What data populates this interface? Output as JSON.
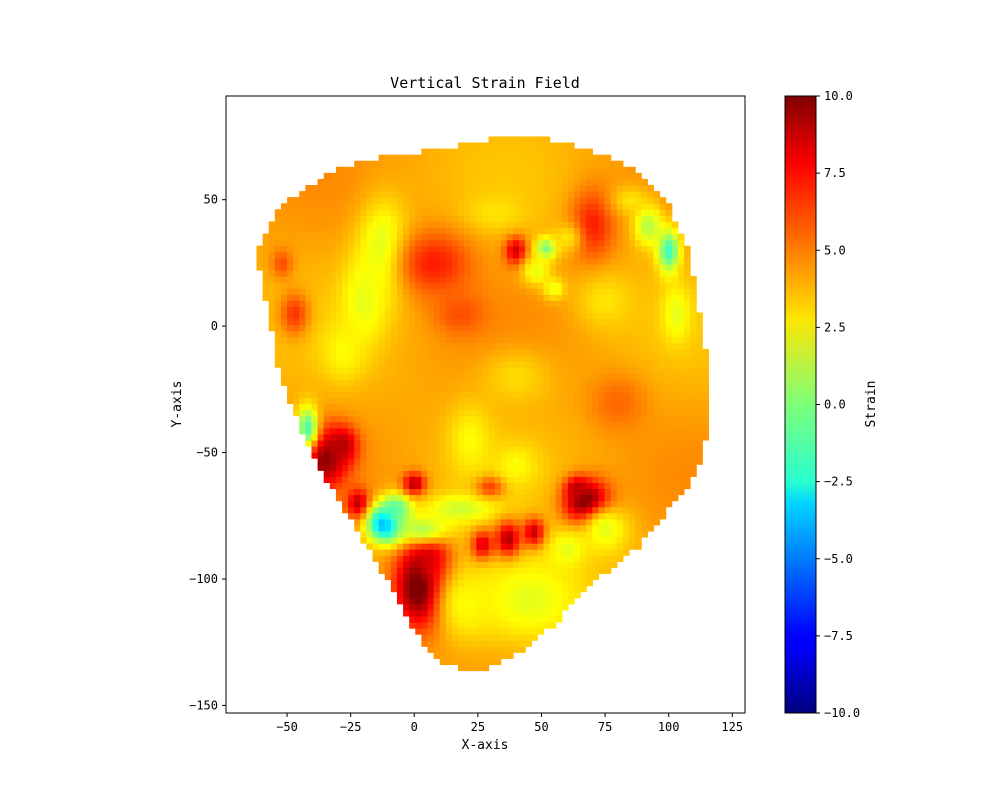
{
  "chart_data": {
    "type": "heatmap",
    "title": "Vertical Strain Field",
    "xlabel": "X-axis",
    "ylabel": "Y-axis",
    "xlim": [
      -74,
      130
    ],
    "ylim": [
      -153,
      91
    ],
    "x_ticks": [
      -50,
      -25,
      0,
      25,
      50,
      75,
      100,
      125
    ],
    "y_ticks": [
      50,
      0,
      -50,
      -100,
      -150
    ],
    "colorbar": {
      "label": "Strain",
      "colormap": "jet",
      "range": [
        -10,
        10
      ],
      "ticks": [
        10,
        7.5,
        5,
        2.5,
        0,
        -2.5,
        -5,
        -7.5,
        -10
      ],
      "tick_labels": [
        "10.0",
        "7.5",
        "5.0",
        "2.5",
        "0.0",
        "−2.5",
        "−5.0",
        "−7.5",
        "−10.0"
      ]
    },
    "cell_size": 2.4,
    "background_value": 4.2,
    "region_outline": [
      [
        -62,
        28
      ],
      [
        -58,
        38
      ],
      [
        -52,
        48
      ],
      [
        -42,
        55
      ],
      [
        -30,
        62
      ],
      [
        -18,
        66
      ],
      [
        -5,
        68
      ],
      [
        12,
        70
      ],
      [
        30,
        74
      ],
      [
        52,
        74
      ],
      [
        68,
        70
      ],
      [
        85,
        63
      ],
      [
        100,
        48
      ],
      [
        108,
        30
      ],
      [
        112,
        5
      ],
      [
        116,
        -20
      ],
      [
        116,
        -40
      ],
      [
        112,
        -55
      ],
      [
        106,
        -65
      ],
      [
        98,
        -75
      ],
      [
        88,
        -87
      ],
      [
        78,
        -95
      ],
      [
        66,
        -105
      ],
      [
        55,
        -118
      ],
      [
        40,
        -130
      ],
      [
        25,
        -137
      ],
      [
        10,
        -133
      ],
      [
        -2,
        -118
      ],
      [
        -12,
        -98
      ],
      [
        -22,
        -82
      ],
      [
        -30,
        -68
      ],
      [
        -38,
        -55
      ],
      [
        -44,
        -42
      ],
      [
        -50,
        -28
      ],
      [
        -55,
        -10
      ],
      [
        -57,
        5
      ],
      [
        -60,
        18
      ]
    ],
    "features": [
      {
        "x": -35,
        "y": -52,
        "sx": 6,
        "sy": 8,
        "value": 10
      },
      {
        "x": -28,
        "y": -47,
        "sx": 4,
        "sy": 5,
        "value": 9
      },
      {
        "x": -22,
        "y": -70,
        "sx": 3,
        "sy": 4,
        "value": 9
      },
      {
        "x": 3,
        "y": -103,
        "sx": 7,
        "sy": 11,
        "value": 12
      },
      {
        "x": 6,
        "y": -92,
        "sx": 5,
        "sy": 6,
        "value": 9
      },
      {
        "x": -11,
        "y": -78,
        "sx": 5,
        "sy": 5,
        "value": -5.5
      },
      {
        "x": -7,
        "y": -72,
        "sx": 4,
        "sy": 4,
        "value": -1
      },
      {
        "x": 3,
        "y": -80,
        "sx": 8,
        "sy": 4,
        "value": 1
      },
      {
        "x": 18,
        "y": -72,
        "sx": 10,
        "sy": 4,
        "value": 1.5
      },
      {
        "x": 0,
        "y": -62,
        "sx": 3,
        "sy": 3,
        "value": 9
      },
      {
        "x": 27,
        "y": -87,
        "sx": 3,
        "sy": 4,
        "value": 10
      },
      {
        "x": 37,
        "y": -85,
        "sx": 3.5,
        "sy": 5,
        "value": 11
      },
      {
        "x": 47,
        "y": -82,
        "sx": 3,
        "sy": 4,
        "value": 10
      },
      {
        "x": 68,
        "y": -70,
        "sx": 6,
        "sy": 6,
        "value": 12
      },
      {
        "x": 64,
        "y": -64,
        "sx": 3,
        "sy": 3,
        "value": 9
      },
      {
        "x": 30,
        "y": -63,
        "sx": 4,
        "sy": 3,
        "value": 7
      },
      {
        "x": 45,
        "y": -108,
        "sx": 18,
        "sy": 14,
        "value": 2
      },
      {
        "x": 20,
        "y": -110,
        "sx": 8,
        "sy": 10,
        "value": 2.5
      },
      {
        "x": 75,
        "y": -80,
        "sx": 7,
        "sy": 7,
        "value": 2
      },
      {
        "x": 60,
        "y": -88,
        "sx": 5,
        "sy": 5,
        "value": 2
      },
      {
        "x": 40,
        "y": -55,
        "sx": 6,
        "sy": 6,
        "value": 2.5
      },
      {
        "x": 22,
        "y": -45,
        "sx": 6,
        "sy": 10,
        "value": 2.5
      },
      {
        "x": -42,
        "y": -40,
        "sx": 3,
        "sy": 6,
        "value": -1
      },
      {
        "x": -47,
        "y": 5,
        "sx": 4,
        "sy": 6,
        "value": 6.5
      },
      {
        "x": -52,
        "y": 25,
        "sx": 3,
        "sy": 4,
        "value": 6
      },
      {
        "x": -12,
        "y": 30,
        "sx": 7,
        "sy": 14,
        "value": 1.5
      },
      {
        "x": -20,
        "y": 10,
        "sx": 6,
        "sy": 12,
        "value": 2
      },
      {
        "x": -28,
        "y": -10,
        "sx": 6,
        "sy": 8,
        "value": 2.5
      },
      {
        "x": 8,
        "y": 25,
        "sx": 10,
        "sy": 9,
        "value": 7
      },
      {
        "x": 18,
        "y": 5,
        "sx": 7,
        "sy": 6,
        "value": 6
      },
      {
        "x": 40,
        "y": 30,
        "sx": 3,
        "sy": 4,
        "value": 8.5
      },
      {
        "x": 52,
        "y": 31,
        "sx": 3,
        "sy": 3,
        "value": -0.5
      },
      {
        "x": 48,
        "y": 22,
        "sx": 4,
        "sy": 4,
        "value": 2
      },
      {
        "x": 55,
        "y": 15,
        "sx": 3,
        "sy": 3,
        "value": 2
      },
      {
        "x": 32,
        "y": 45,
        "sx": 8,
        "sy": 5,
        "value": 3
      },
      {
        "x": 70,
        "y": 40,
        "sx": 6,
        "sy": 10,
        "value": 7
      },
      {
        "x": 60,
        "y": 35,
        "sx": 4,
        "sy": 4,
        "value": 3
      },
      {
        "x": 100,
        "y": 30,
        "sx": 3,
        "sy": 6,
        "value": -1.5
      },
      {
        "x": 92,
        "y": 40,
        "sx": 4,
        "sy": 6,
        "value": 1
      },
      {
        "x": 103,
        "y": 5,
        "sx": 4,
        "sy": 8,
        "value": 2
      },
      {
        "x": 85,
        "y": 50,
        "sx": 5,
        "sy": 4,
        "value": 3
      },
      {
        "x": 40,
        "y": -20,
        "sx": 10,
        "sy": 8,
        "value": 3.2
      },
      {
        "x": 80,
        "y": -30,
        "sx": 8,
        "sy": 8,
        "value": 5.5
      },
      {
        "x": 75,
        "y": 10,
        "sx": 8,
        "sy": 8,
        "value": 3
      }
    ]
  }
}
